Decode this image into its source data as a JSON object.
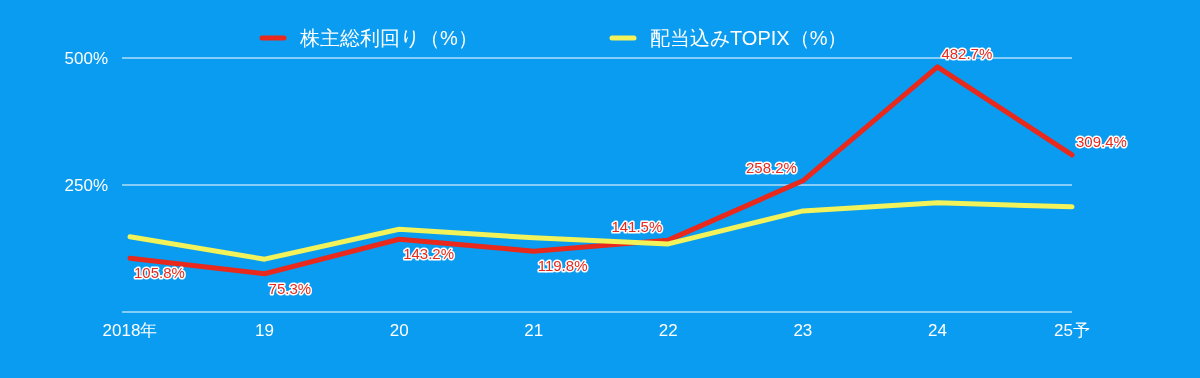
{
  "chart_data": {
    "type": "line",
    "categories": [
      "2018年",
      "19",
      "20",
      "21",
      "22",
      "23",
      "24",
      "25予"
    ],
    "series": [
      {
        "name": "株主総利回り（%）",
        "color": "#e8291c",
        "values": [
          105.8,
          75.3,
          143.2,
          119.8,
          141.5,
          258.2,
          482.7,
          309.4
        ],
        "value_labels": [
          "105.8%",
          "75.3%",
          "143.2%",
          "119.8%",
          "141.5%",
          "258.2%",
          "482.7%",
          "309.4%"
        ]
      },
      {
        "name": "配当込みTOPIX（%）",
        "color": "#f2f25a",
        "values": [
          148,
          104,
          163,
          146,
          134,
          199,
          215,
          207
        ]
      }
    ],
    "ylim": [
      0,
      500
    ],
    "yticks": [
      {
        "value": 0,
        "label": null
      },
      {
        "value": 250,
        "label": "250%"
      },
      {
        "value": 500,
        "label": "500%"
      }
    ],
    "grid": "y",
    "legend": "top",
    "marker": "none",
    "line_style": "solid"
  }
}
